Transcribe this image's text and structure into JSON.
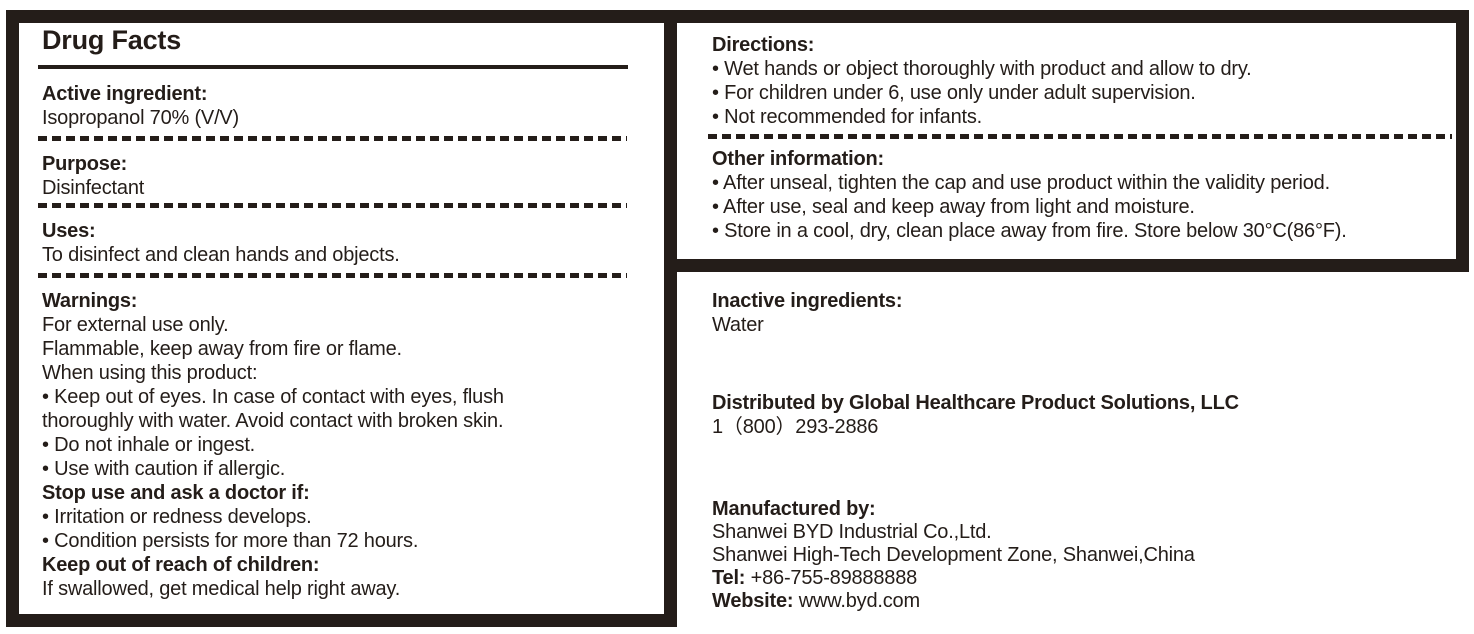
{
  "ink": "#241d19",
  "drug_facts": {
    "title": "Drug Facts",
    "active_header": "Active ingredient:",
    "active_value": "Isopropanol 70% (V/V)",
    "purpose_header": "Purpose:",
    "purpose_value": "Disinfectant",
    "uses_header": "Uses:",
    "uses_value": "To disinfect and clean hands and objects.",
    "warnings_header": "Warnings:",
    "warnings_lines": [
      "For external use only.",
      "Flammable, keep away from fire or flame.",
      "When using this product:",
      "• Keep out of eyes. In case of contact with eyes, flush",
      "thoroughly with water. Avoid contact with broken skin.",
      "• Do not inhale or ingest.",
      "• Use with caution if allergic.",
      "Stop use and ask a doctor if:",
      "• Irritation or redness develops.",
      "• Condition persists for more than 72 hours.",
      "Keep out of reach of children:",
      "If swallowed, get medical help right away."
    ]
  },
  "directions": {
    "header": "Directions:",
    "bullets": [
      "• Wet hands or object thoroughly with product and allow to dry.",
      "• For children under 6, use only under adult supervision.",
      "• Not recommended for infants."
    ]
  },
  "other_information": {
    "header": "Other information:",
    "bullets": [
      "• After unseal, tighten the cap and use product within the validity period.",
      "• After use, seal and keep away from light and moisture.",
      "• Store in a cool, dry, clean place away from fire. Store below 30°C(86°F)."
    ]
  },
  "inactive": {
    "header": "Inactive ingredients:",
    "value": "Water"
  },
  "distributor": {
    "name": "Distributed by Global Healthcare Product Solutions, LLC",
    "phone": "1（800）293-2886"
  },
  "manufacturer": {
    "header": "Manufactured by:",
    "company": "Shanwei BYD Industrial Co.,Ltd.",
    "address": "Shanwei High-Tech Development Zone, Shanwei,China",
    "tel_label": "Tel:",
    "tel_value": " +86-755-89888888",
    "website_label": "Website:",
    "website_value": " www.byd.com"
  }
}
